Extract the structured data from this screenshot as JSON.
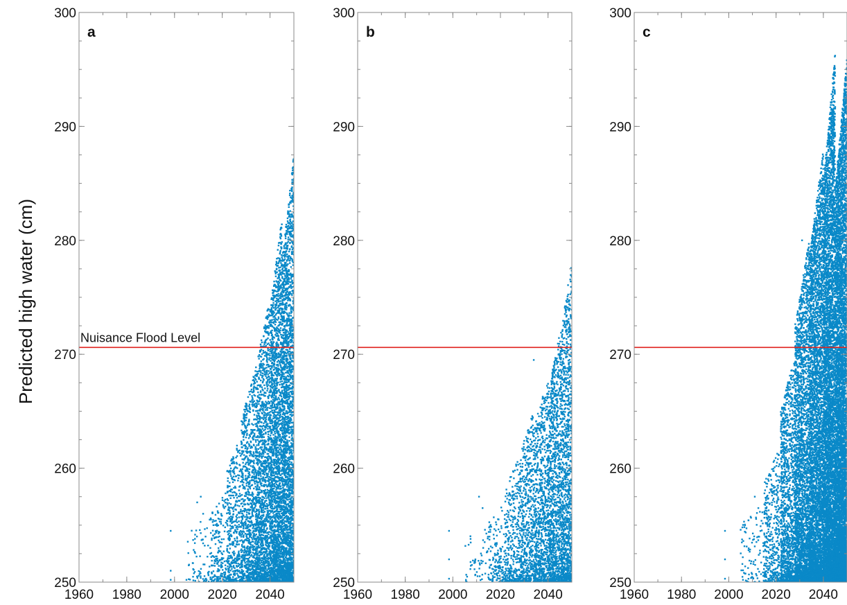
{
  "chart_data": {
    "type": "scatter",
    "ylabel": "Predicted high water (cm)",
    "xlim": [
      1960,
      2050
    ],
    "ylim": [
      250,
      300
    ],
    "x_ticks": [
      1960,
      1980,
      2000,
      2020,
      2040
    ],
    "y_ticks": [
      250,
      260,
      270,
      280,
      290,
      300
    ],
    "threshold": {
      "value": 270.6,
      "label": "Nuisance Flood Level",
      "color": "#e0201b"
    },
    "marker_color": "#0a89c8",
    "panels": [
      {
        "label": "a",
        "x_visible_max": 2050,
        "series": [
          {
            "x": [
              1998.4,
              1998.4,
              1998.4,
              2005,
              2009.5,
              2011,
              2012,
              2013,
              2015,
              2020
            ],
            "y": [
              254.5,
              251,
              250.2,
              250.2,
              257,
              257.5,
              256,
              254,
              253,
              252
            ]
          }
        ],
        "density": [
          {
            "from": 2005,
            "to": 2015,
            "count": 70,
            "ymax": 256
          },
          {
            "from": 2015,
            "to": 2022,
            "count": 200,
            "ymax": 258
          },
          {
            "from": 2022,
            "to": 2028,
            "count": 450,
            "ymax": 263
          },
          {
            "from": 2028,
            "to": 2034,
            "count": 900,
            "ymax": 269
          },
          {
            "from": 2034,
            "to": 2040,
            "count": 1500,
            "ymax": 275
          },
          {
            "from": 2040,
            "to": 2045,
            "count": 2000,
            "ymax": 282
          },
          {
            "from": 2045,
            "to": 2050,
            "count": 2500,
            "ymax": 287.5
          }
        ]
      },
      {
        "label": "b",
        "x_visible_max": 2050,
        "series": [
          {
            "x": [
              1998.4,
              1998.4,
              1998.4,
              2005.5,
              2011,
              2012.5,
              2034
            ],
            "y": [
              254.5,
              252,
              250.3,
              250.2,
              257.5,
              256.5,
              269.5
            ]
          }
        ],
        "density": [
          {
            "from": 2005,
            "to": 2015,
            "count": 50,
            "ymax": 255
          },
          {
            "from": 2015,
            "to": 2022,
            "count": 150,
            "ymax": 257
          },
          {
            "from": 2022,
            "to": 2028,
            "count": 300,
            "ymax": 261
          },
          {
            "from": 2028,
            "to": 2034,
            "count": 550,
            "ymax": 265
          },
          {
            "from": 2034,
            "to": 2040,
            "count": 800,
            "ymax": 268
          },
          {
            "from": 2040,
            "to": 2045,
            "count": 1000,
            "ymax": 272
          },
          {
            "from": 2045,
            "to": 2050,
            "count": 1200,
            "ymax": 278.5
          }
        ]
      },
      {
        "label": "c",
        "x_visible_max": 2050,
        "series": [
          {
            "x": [
              1998.4,
              1998.4,
              1998.4,
              2006,
              2011,
              2012.5,
              2031
            ],
            "y": [
              254.5,
              252,
              250.3,
              250.2,
              257.5,
              256.5,
              280
            ]
          }
        ],
        "density": [
          {
            "from": 2005,
            "to": 2015,
            "count": 100,
            "ymax": 257
          },
          {
            "from": 2015,
            "to": 2022,
            "count": 400,
            "ymax": 262
          },
          {
            "from": 2022,
            "to": 2028,
            "count": 1200,
            "ymax": 270
          },
          {
            "from": 2028,
            "to": 2034,
            "count": 2500,
            "ymax": 280
          },
          {
            "from": 2034,
            "to": 2040,
            "count": 4000,
            "ymax": 288
          },
          {
            "from": 2040,
            "to": 2045,
            "count": 5000,
            "ymax": 296.5
          },
          {
            "from": 2045,
            "to": 2050,
            "count": 6000,
            "ymax": 296
          }
        ]
      }
    ]
  }
}
